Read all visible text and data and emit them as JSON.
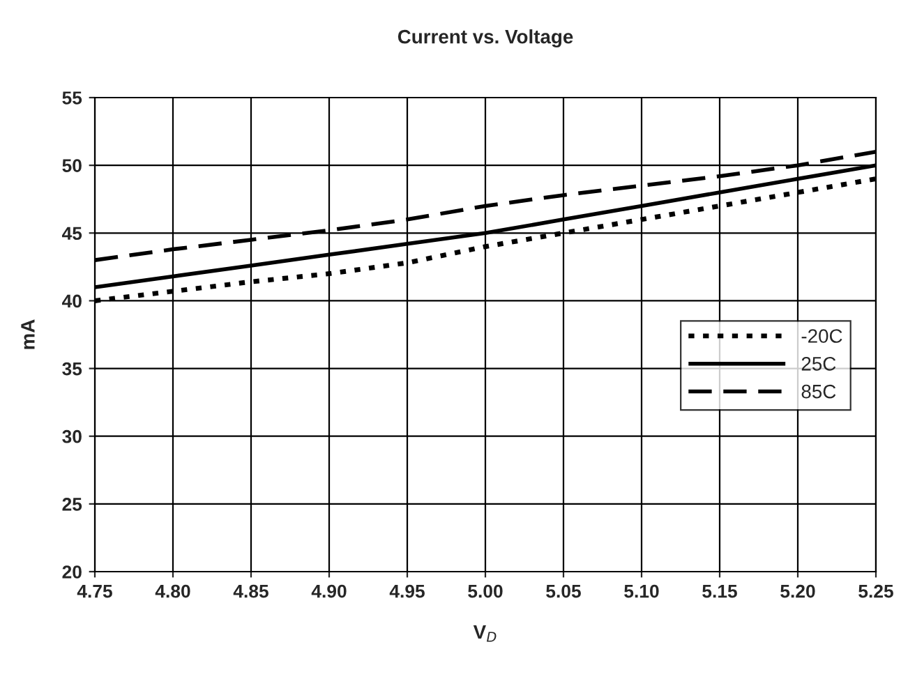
{
  "chart_data": {
    "type": "line",
    "title": "Current vs. Voltage",
    "xlabel": "V$_{D}$",
    "ylabel": "mA",
    "x": [
      4.75,
      4.8,
      4.85,
      4.9,
      4.95,
      5.0,
      5.05,
      5.1,
      5.15,
      5.2,
      5.25
    ],
    "series": [
      {
        "name": "-20C",
        "color": "#000000",
        "line_style": "dotted",
        "values": [
          40,
          40.7,
          41.4,
          42.0,
          42.8,
          44.0,
          45.0,
          46.0,
          47.0,
          48.0,
          49.0
        ]
      },
      {
        "name": "25C",
        "color": "#000000",
        "line_style": "solid",
        "values": [
          41,
          41.8,
          42.6,
          43.4,
          44.2,
          45.0,
          46.0,
          47.0,
          48.0,
          49.0,
          50.0
        ]
      },
      {
        "name": "85C",
        "color": "#000000",
        "line_style": "dashed",
        "values": [
          43,
          43.8,
          44.5,
          45.2,
          46.0,
          47.0,
          47.8,
          48.5,
          49.2,
          50.0,
          51.0
        ]
      }
    ],
    "xlim": [
      4.75,
      5.25
    ],
    "xticks": [
      {
        "value": 4.75,
        "label": "4.75"
      },
      {
        "value": 4.8,
        "label": "4.80"
      },
      {
        "value": 4.85,
        "label": "4.85"
      },
      {
        "value": 4.9,
        "label": "4.90"
      },
      {
        "value": 4.95,
        "label": "4.95"
      },
      {
        "value": 5.0,
        "label": "5.00"
      },
      {
        "value": 5.05,
        "label": "5.05"
      },
      {
        "value": 5.1,
        "label": "5.10"
      },
      {
        "value": 5.15,
        "label": "5.15"
      },
      {
        "value": 5.2,
        "label": "5.20"
      },
      {
        "value": 5.25,
        "label": "5.25"
      }
    ],
    "ylim": [
      20,
      55
    ],
    "yticks": [
      20,
      25,
      30,
      35,
      40,
      45,
      50,
      55
    ],
    "grid": true,
    "legend": "center right",
    "marker": "none"
  }
}
